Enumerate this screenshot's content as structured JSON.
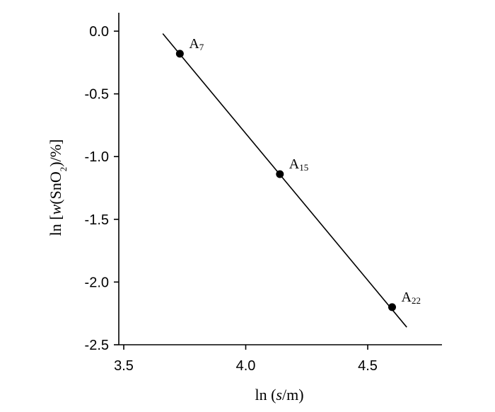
{
  "chart_data": {
    "type": "scatter",
    "xlabel": {
      "prefix": "ln (",
      "italic": "s",
      "suffix": "/m)"
    },
    "ylabel": {
      "prefix": "ln [",
      "italic": "w",
      "middle": "(SnO",
      "sub": "2",
      "suffix": ")/%]"
    },
    "xlim": [
      3.5,
      4.8
    ],
    "ylim": [
      -2.5,
      0.1
    ],
    "x_ticks": [
      3.5,
      4.0,
      4.5
    ],
    "x_tick_labels": [
      "3.5",
      "4.0",
      "4.5"
    ],
    "y_ticks": [
      0.0,
      -0.5,
      -1.0,
      -1.5,
      -2.0,
      -2.5
    ],
    "y_tick_labels": [
      "0.0",
      "-0.5",
      "-1.0",
      "-1.5",
      "-2.0",
      "-2.5"
    ],
    "grid": false,
    "points": [
      {
        "x": 3.73,
        "y": -0.18,
        "label_main": "A",
        "label_sub": "7"
      },
      {
        "x": 4.14,
        "y": -1.14,
        "label_main": "A",
        "label_sub": "15"
      },
      {
        "x": 4.6,
        "y": -2.2,
        "label_main": "A",
        "label_sub": "22"
      }
    ],
    "fit_line": {
      "x": [
        3.66,
        4.66
      ],
      "y": [
        -0.02,
        -2.36
      ]
    }
  }
}
